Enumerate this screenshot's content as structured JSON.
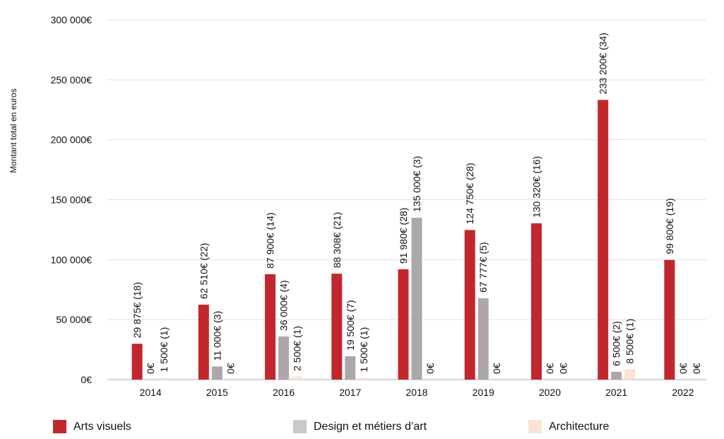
{
  "chart_data": {
    "type": "bar",
    "ylabel": "Montant total en euros",
    "ylim": [
      0,
      300000
    ],
    "yticks": [
      0,
      50000,
      100000,
      150000,
      200000,
      250000,
      300000
    ],
    "ytick_labels": [
      "0€",
      "50 000€",
      "100 000€",
      "150 000€",
      "200 000€",
      "250 000€",
      "300 000€"
    ],
    "grid": "horizontal",
    "legend_position": "bottom",
    "categories": [
      "2014",
      "2015",
      "2016",
      "2017",
      "2018",
      "2019",
      "2020",
      "2021",
      "2022"
    ],
    "series": [
      {
        "name": "Arts visuels",
        "color": "#c1272d",
        "values": [
          29875,
          62510,
          87900,
          88308,
          91980,
          124750,
          130320,
          233200,
          99800
        ],
        "labels": [
          "29 875€ (18)",
          "62 510€ (22)",
          "87 900€ (14)",
          "88 308€ (21)",
          "91 980€ (28)",
          "124 750€ (28)",
          "130 320€ (16)",
          "233 200€ (34)",
          "99 800€ (19)"
        ]
      },
      {
        "name": "Design et métiers d'art",
        "color": "#aea7aa",
        "values": [
          0,
          11000,
          36000,
          19500,
          135000,
          67777,
          0,
          6500,
          0
        ],
        "labels": [
          "0€",
          "11 000€ (3)",
          "36 000€ (4)",
          "19 500€ (7)",
          "135 000€ (3)",
          "67 777€ (5)",
          "0€",
          "6 500€ (2)",
          "0€"
        ]
      },
      {
        "name": "Architecture",
        "color": "#f9e3d6",
        "values": [
          1500,
          0,
          2500,
          1500,
          0,
          0,
          0,
          8500,
          0
        ],
        "labels": [
          "1 500€ (1)",
          "0€",
          "2 500€ (1)",
          "1 500€ (1)",
          "0€",
          "0€",
          "0€",
          "8 500€ (1)",
          "0€"
        ]
      }
    ]
  },
  "legend": {
    "items": [
      {
        "label": "Arts visuels",
        "color": "#c1272d"
      },
      {
        "label": "Design et métiers d’art",
        "color": "#c8c9cb"
      },
      {
        "label": "Architecture",
        "color": "#f9e3d6"
      }
    ]
  }
}
